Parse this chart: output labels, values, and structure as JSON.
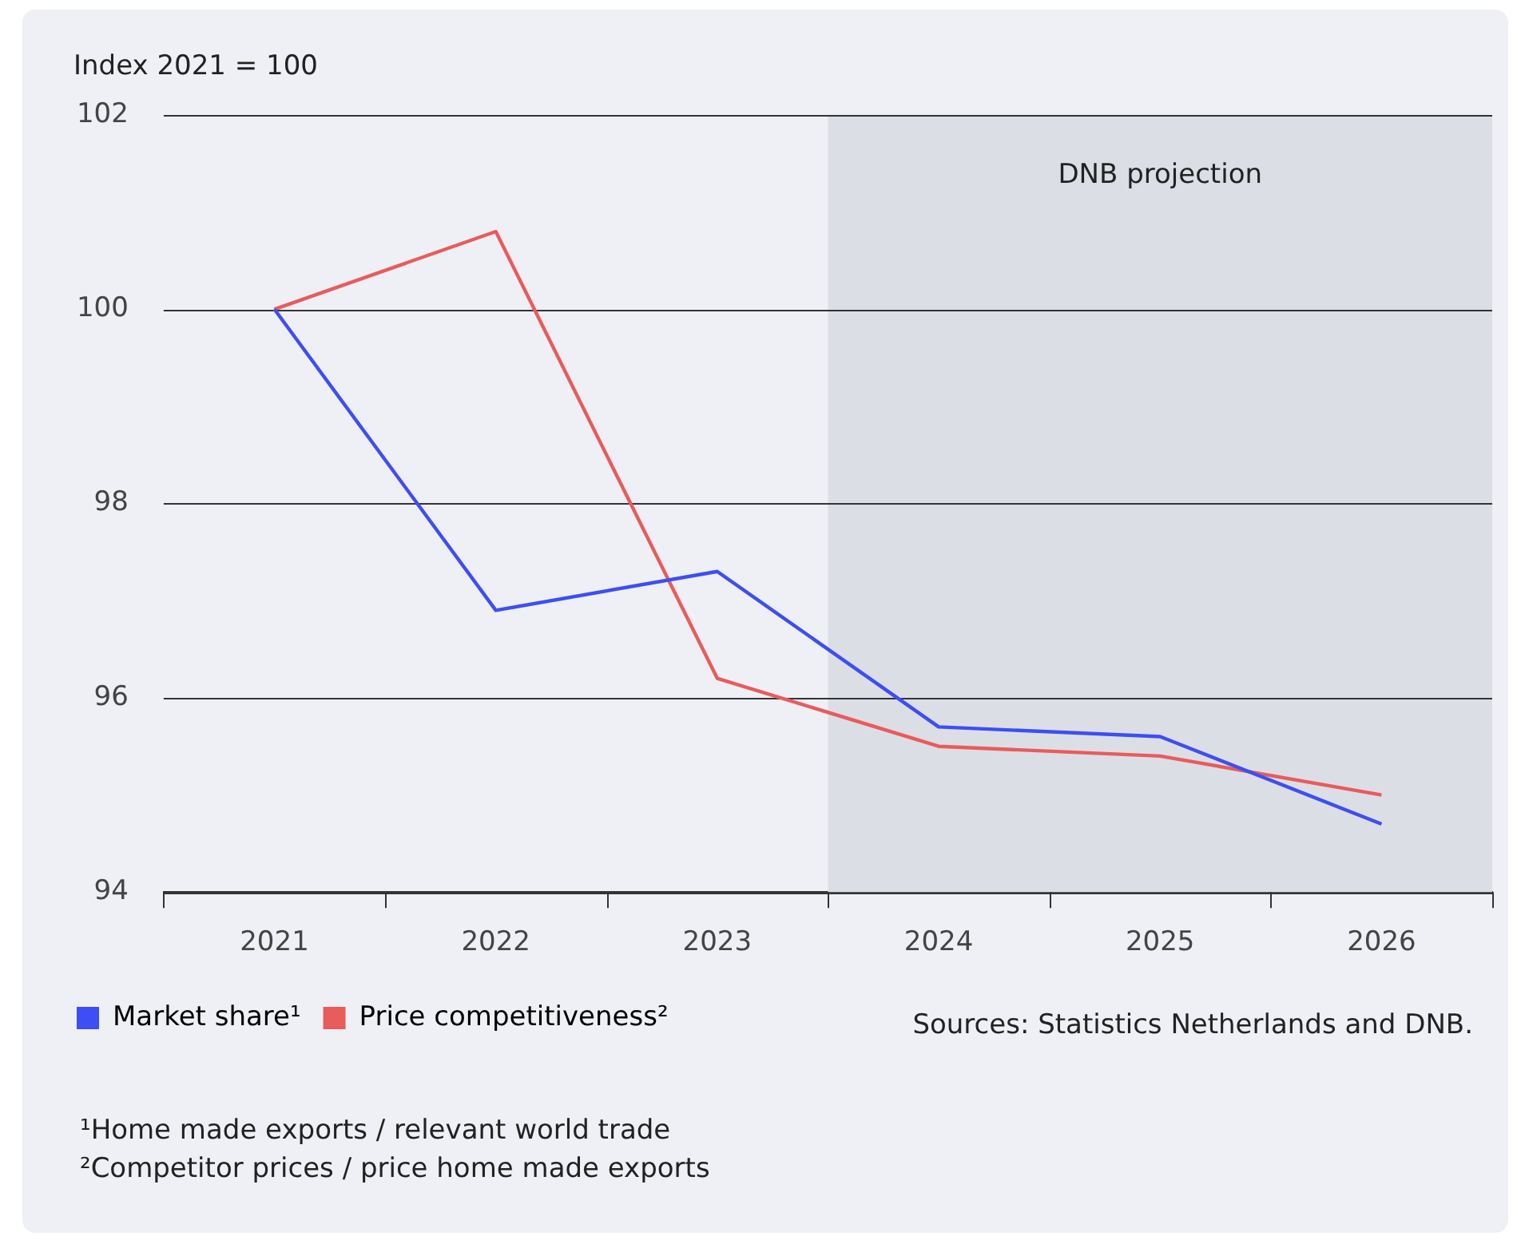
{
  "chart_data": {
    "type": "line",
    "ylabel": "Index 2021 = 100",
    "x": [
      2021,
      2022,
      2023,
      2024,
      2025,
      2026
    ],
    "xlim": [
      2020.5,
      2026.5
    ],
    "xticks": [
      2021,
      2022,
      2023,
      2024,
      2025,
      2026
    ],
    "ylim": [
      94,
      102
    ],
    "yticks": [
      94,
      96,
      98,
      100,
      102
    ],
    "series": [
      {
        "name": "Market share¹",
        "color": "#3d4ef5",
        "values": [
          100,
          96.9,
          97.3,
          95.7,
          95.6,
          94.7
        ]
      },
      {
        "name": "Price competitiveness²",
        "color": "#e85c5c",
        "values": [
          100,
          100.8,
          96.2,
          95.5,
          95.4,
          95.0
        ]
      }
    ],
    "bands": [
      {
        "axis": "x",
        "from": 2023.5,
        "to": 2026.5,
        "label": "DNB projection",
        "color": "#dcdee5"
      }
    ],
    "grid": "y",
    "legend": "bottom left",
    "marker": "none",
    "line_style": "solid",
    "annotations": [
      "Sources: Statistics Netherlands and DNB.",
      "¹Home made exports / relevant world trade",
      "²Competitor prices / price home made exports"
    ]
  }
}
